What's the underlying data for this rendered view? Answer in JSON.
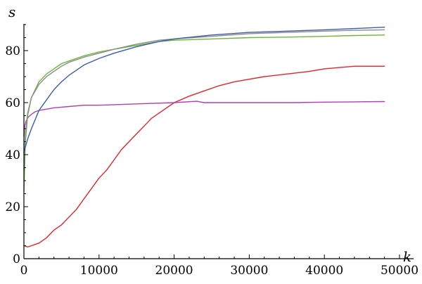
{
  "chart_data": {
    "type": "line",
    "xlabel": "k",
    "ylabel": "s",
    "xlim": [
      0,
      50000
    ],
    "ylim": [
      0,
      90
    ],
    "x_ticks": [
      0,
      10000,
      20000,
      30000,
      40000,
      50000
    ],
    "y_ticks": [
      0,
      20,
      40,
      60,
      80
    ],
    "x_tick_labels": [
      "0",
      "10000",
      "20000",
      "30000",
      "40000",
      "50000"
    ],
    "y_tick_labels": [
      "0",
      "20",
      "40",
      "60",
      "80"
    ],
    "grid": false,
    "legend": "none",
    "series": [
      {
        "color": "#e3232b",
        "x": [
          0,
          500,
          1000,
          2000,
          3000,
          4000,
          5000,
          6000,
          7000,
          8000,
          9000,
          10000,
          11000,
          12000,
          13000,
          14000,
          15000,
          16000,
          17000,
          18000,
          19000,
          20000,
          22000,
          24000,
          26000,
          28000,
          30000,
          32000,
          35000,
          38000,
          40000,
          42000,
          44000,
          46000,
          48000
        ],
        "y": [
          5,
          4.5,
          5,
          6,
          8,
          11,
          13,
          16,
          19,
          23,
          27,
          31,
          34,
          38,
          42,
          45,
          48,
          51,
          54,
          56,
          58,
          60,
          62.5,
          64.5,
          66.5,
          68,
          69,
          70,
          71,
          72,
          73,
          73.5,
          74,
          74,
          74
        ]
      },
      {
        "color": "#b040b0",
        "x": [
          0,
          100,
          300,
          600,
          1000,
          1500,
          2000,
          3000,
          4000,
          6000,
          8000,
          10000,
          15000,
          20000,
          23000,
          24000,
          25000,
          28000,
          32000,
          36000,
          40000,
          44000,
          48000
        ],
        "y": [
          47,
          51,
          53,
          54.5,
          55.5,
          56.5,
          57,
          57.5,
          58,
          58.5,
          59,
          59,
          59.5,
          60,
          60.5,
          60,
          60,
          60,
          60,
          60,
          60.2,
          60.3,
          60.4
        ]
      },
      {
        "color": "#6ab834",
        "x": [
          0,
          200,
          500,
          1000,
          2000,
          3000,
          4000,
          5000,
          6000,
          8000,
          10000,
          12000,
          15000,
          18000,
          20000,
          25000,
          30000,
          35000,
          40000,
          44000,
          48000
        ],
        "y": [
          26,
          45,
          55,
          62,
          68,
          71,
          73,
          75,
          76,
          78,
          79.5,
          80.5,
          82,
          83.5,
          84,
          84.5,
          85,
          85.2,
          85.5,
          85.8,
          86
        ]
      },
      {
        "color": "#8c8c8c",
        "x": [
          0,
          200,
          500,
          1000,
          2000,
          3000,
          4000,
          5000,
          6000,
          8000,
          10000,
          12000,
          15000,
          18000,
          20000,
          25000,
          30000,
          35000,
          40000,
          44000,
          48000
        ],
        "y": [
          34,
          48,
          56,
          62,
          67,
          70,
          72,
          74,
          75.5,
          77.5,
          79,
          80.5,
          82.5,
          84,
          84.5,
          85.5,
          86.5,
          87,
          87.5,
          87.8,
          88
        ]
      },
      {
        "color": "#3a5bb0",
        "x": [
          0,
          200,
          500,
          1000,
          2000,
          3000,
          4000,
          5000,
          6000,
          7000,
          8000,
          10000,
          12000,
          15000,
          18000,
          20000,
          25000,
          30000,
          35000,
          40000,
          44000,
          48000
        ],
        "y": [
          41,
          43,
          46,
          50,
          57,
          61,
          65,
          68,
          70.5,
          72.5,
          74.5,
          77,
          79,
          81.5,
          83.5,
          84.5,
          86,
          87,
          87.5,
          88,
          88.5,
          89
        ]
      }
    ]
  }
}
